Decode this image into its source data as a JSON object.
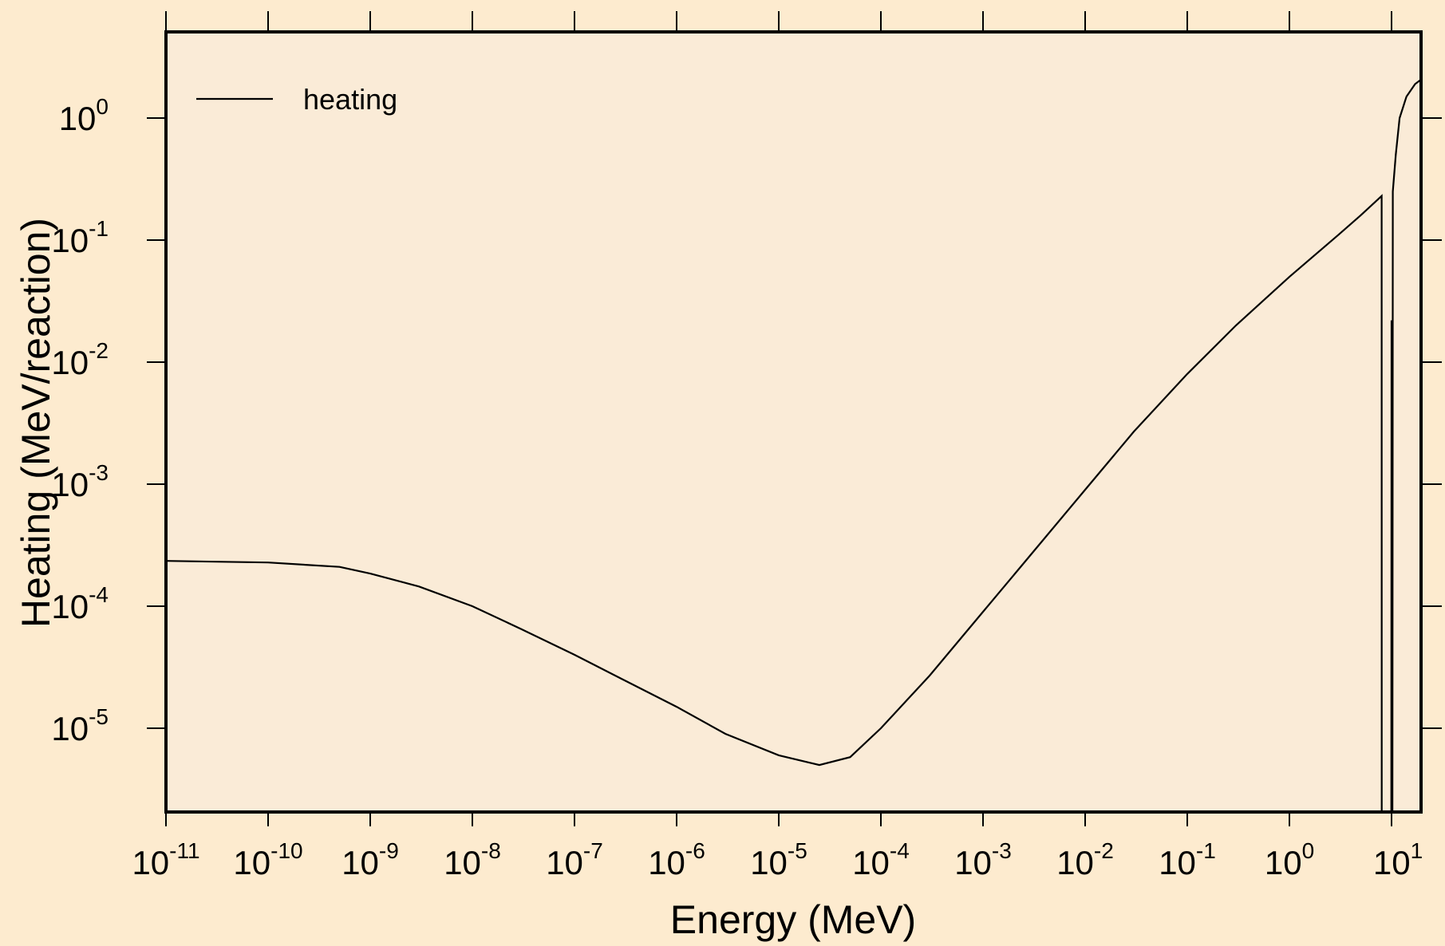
{
  "chart_data": {
    "type": "line",
    "xlabel": "Energy (MeV)",
    "ylabel": "Heating (MeV/reaction)",
    "xscale": "log",
    "yscale": "log",
    "xlim": [
      1e-11,
      20
    ],
    "ylim": [
      2e-06,
      5
    ],
    "grid": false,
    "legend": {
      "placement": "top-left",
      "entries": [
        "heating"
      ]
    },
    "colors": {
      "background": "#fdebcf",
      "plot_area": "#faebd7",
      "line": "#000000"
    },
    "x_ticks": [
      {
        "base": "10",
        "exp": "-11",
        "value": 1e-11
      },
      {
        "base": "10",
        "exp": "-10",
        "value": 1e-10
      },
      {
        "base": "10",
        "exp": "-9",
        "value": 1e-09
      },
      {
        "base": "10",
        "exp": "-8",
        "value": 1e-08
      },
      {
        "base": "10",
        "exp": "-7",
        "value": 1e-07
      },
      {
        "base": "10",
        "exp": "-6",
        "value": 1e-06
      },
      {
        "base": "10",
        "exp": "-5",
        "value": 1e-05
      },
      {
        "base": "10",
        "exp": "-4",
        "value": 0.0001
      },
      {
        "base": "10",
        "exp": "-3",
        "value": 0.001
      },
      {
        "base": "10",
        "exp": "-2",
        "value": 0.01
      },
      {
        "base": "10",
        "exp": "-1",
        "value": 0.1
      },
      {
        "base": "10",
        "exp": "0",
        "value": 1
      },
      {
        "base": "10",
        "exp": "1",
        "value": 10
      }
    ],
    "y_ticks": [
      {
        "base": "10",
        "exp": "-5",
        "value": 1e-05
      },
      {
        "base": "10",
        "exp": "-4",
        "value": 0.0001
      },
      {
        "base": "10",
        "exp": "-3",
        "value": 0.001
      },
      {
        "base": "10",
        "exp": "-2",
        "value": 0.01
      },
      {
        "base": "10",
        "exp": "-1",
        "value": 0.1
      },
      {
        "base": "10",
        "exp": "0",
        "value": 1
      }
    ],
    "series": [
      {
        "name": "heating",
        "points": [
          [
            1e-11,
            0.000235
          ],
          [
            1e-10,
            0.000228
          ],
          [
            5e-10,
            0.00021
          ],
          [
            1e-09,
            0.000185
          ],
          [
            3e-09,
            0.000145
          ],
          [
            1e-08,
            0.0001
          ],
          [
            3e-08,
            6.5e-05
          ],
          [
            1e-07,
            4e-05
          ],
          [
            3e-07,
            2.5e-05
          ],
          [
            1e-06,
            1.5e-05
          ],
          [
            3e-06,
            9e-06
          ],
          [
            1e-05,
            6e-06
          ],
          [
            2.5e-05,
            5e-06
          ],
          [
            5e-05,
            5.8e-06
          ],
          [
            0.0001,
            1e-05
          ],
          [
            0.0003,
            2.7e-05
          ],
          [
            0.001,
            9e-05
          ],
          [
            0.003,
            0.00027
          ],
          [
            0.01,
            0.0009
          ],
          [
            0.03,
            0.0027
          ],
          [
            0.1,
            0.008
          ],
          [
            0.3,
            0.02
          ],
          [
            1,
            0.05
          ],
          [
            3,
            0.11
          ],
          [
            5,
            0.16
          ],
          [
            8,
            0.23
          ],
          [
            8.01,
            2e-06
          ],
          [
            9.95,
            2e-06
          ],
          [
            10,
            0.022
          ],
          [
            10.1,
            2e-06
          ],
          [
            10.2,
            2e-06
          ],
          [
            10.3,
            0.25
          ],
          [
            11,
            0.5
          ],
          [
            12,
            1.0
          ],
          [
            14,
            1.5
          ],
          [
            17,
            1.9
          ],
          [
            20,
            2.1
          ]
        ]
      }
    ]
  }
}
